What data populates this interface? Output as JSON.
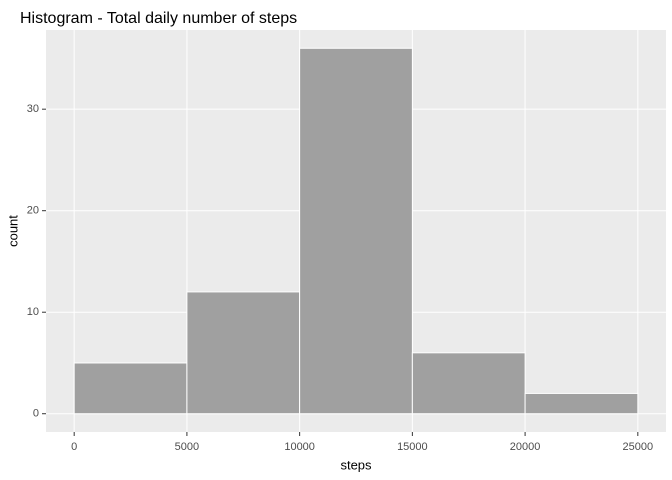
{
  "chart_data": {
    "type": "histogram",
    "title": "Histogram - Total daily number of steps",
    "x_label": "steps",
    "y_label": "count",
    "bins": [
      0,
      5000,
      10000,
      15000,
      20000,
      25000
    ],
    "values": [
      5,
      12,
      36,
      6,
      2
    ],
    "color": "#a0a0a0",
    "xlim": [
      -1250,
      26250
    ],
    "xticks": [
      0,
      5000,
      10000,
      15000,
      20000,
      25000
    ],
    "ylim": [
      -1.8,
      37.8
    ],
    "yticks": [
      0,
      10,
      20,
      30
    ],
    "grid": true
  }
}
